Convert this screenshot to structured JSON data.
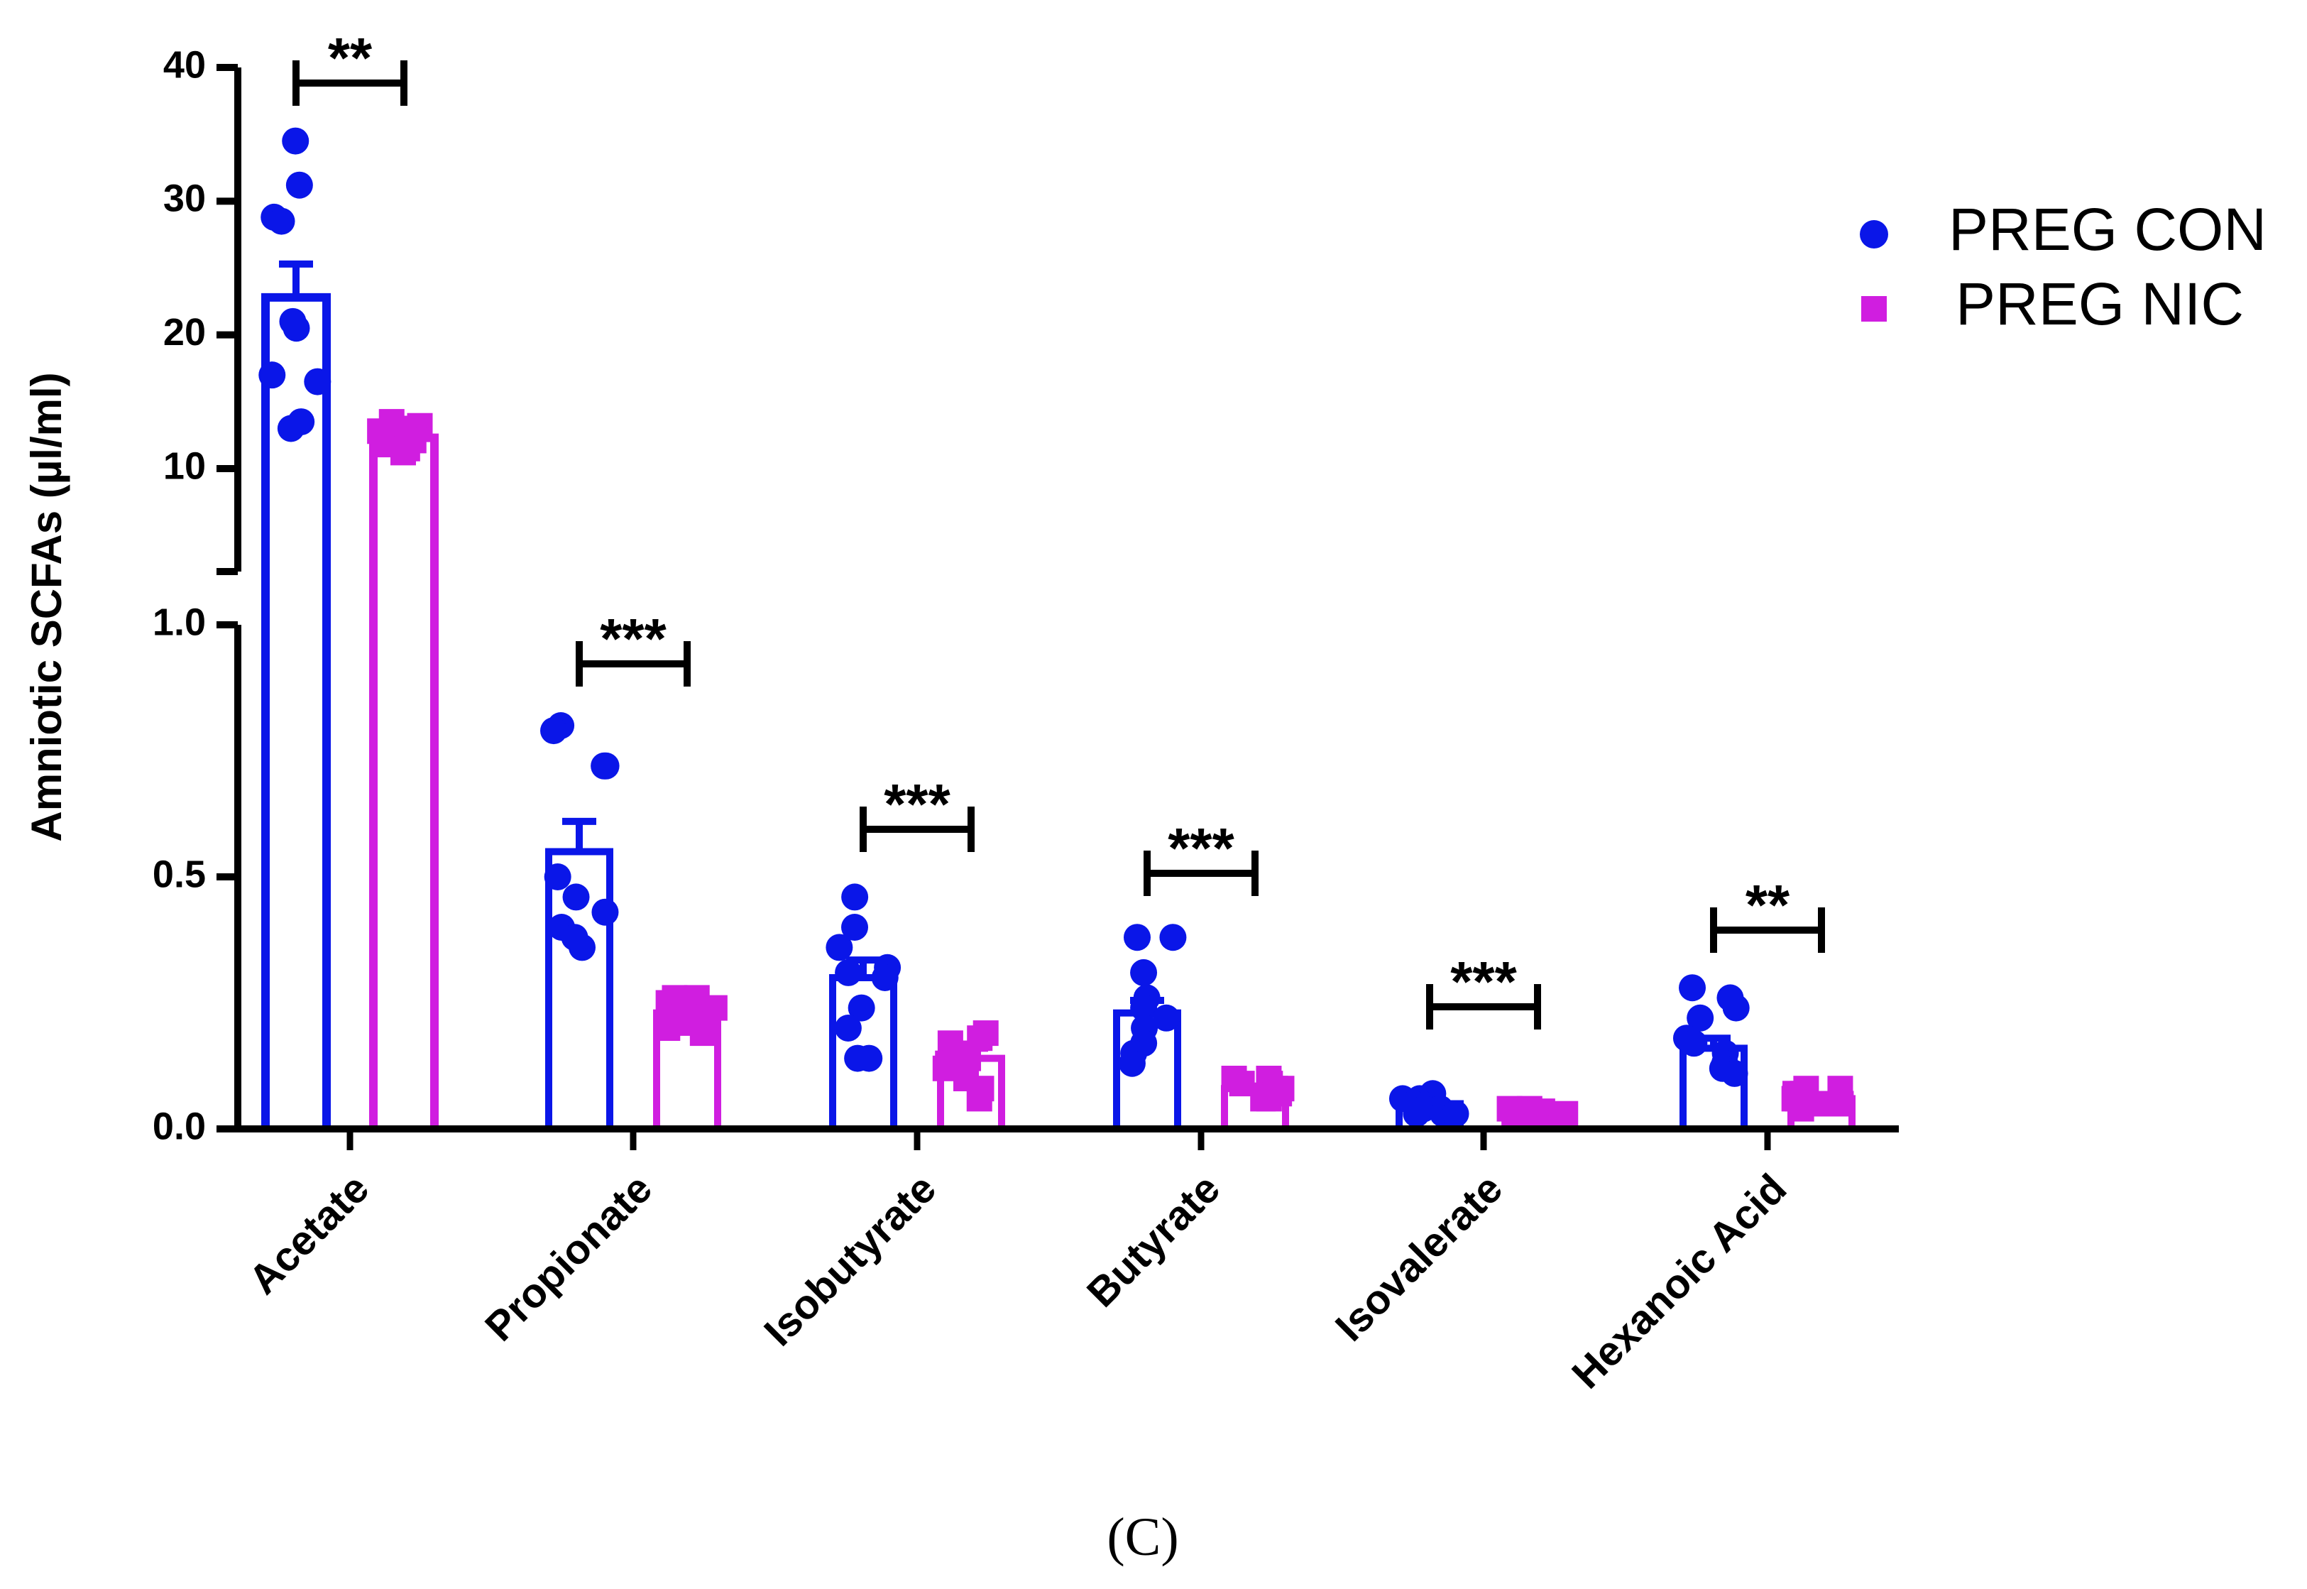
{
  "chart_data": {
    "type": "bar",
    "ylabel": "Amniotic SCFAs (µl/ml)",
    "panel_label": "(C)",
    "categories": [
      "Acetate",
      "Propionate",
      "Isobutyrate",
      "Butyrate",
      "Isovalerate",
      "Hexanoic Acid"
    ],
    "axis_break": {
      "lower_range": [
        0,
        1.0
      ],
      "upper_range": [
        2,
        40
      ],
      "lower_ticks": [
        0.0,
        0.5,
        1.0
      ],
      "lower_tick_labels": [
        "0.0",
        "0.5",
        "1.0"
      ],
      "upper_ticks": [
        10,
        20,
        30,
        40
      ],
      "upper_tick_labels": [
        "10",
        "20",
        "30",
        "40"
      ]
    },
    "colors": {
      "PREG CON": "#0a16e8",
      "PREG NIC": "#d01ee0"
    },
    "legend": [
      {
        "name": "PREG CON",
        "marker": "circle"
      },
      {
        "name": "PREG NIC",
        "marker": "square"
      }
    ],
    "series": [
      {
        "name": "PREG CON",
        "values": [
          22.8,
          0.55,
          0.3,
          0.23,
          0.05,
          0.16
        ],
        "sem": [
          2.5,
          0.06,
          0.035,
          0.025,
          0.005,
          0.02
        ],
        "points": [
          [
            34.5,
            31.2,
            28.8,
            28.5,
            21.0,
            20.5,
            17.0,
            16.5,
            13.5,
            13.0
          ],
          [
            0.8,
            0.79,
            0.72,
            0.72,
            0.5,
            0.46,
            0.43,
            0.4,
            0.38,
            0.36
          ],
          [
            0.46,
            0.4,
            0.36,
            0.32,
            0.31,
            0.3,
            0.24,
            0.2,
            0.14,
            0.14
          ],
          [
            0.38,
            0.38,
            0.31,
            0.26,
            0.24,
            0.22,
            0.2,
            0.17,
            0.15,
            0.13
          ],
          [
            0.07,
            0.06,
            0.06,
            0.05,
            0.05,
            0.04,
            0.04,
            0.03,
            0.03,
            0.03
          ],
          [
            0.28,
            0.26,
            0.24,
            0.22,
            0.18,
            0.17,
            0.15,
            0.13,
            0.12,
            0.11
          ]
        ]
      },
      {
        "name": "PREG NIC",
        "values": [
          12.3,
          0.23,
          0.14,
          0.08,
          0.03,
          0.06
        ],
        "sem": [
          0.4,
          0.01,
          0.02,
          0.005,
          0.003,
          0.006
        ],
        "points": [
          [
            13.5,
            13.2,
            13.0,
            12.8,
            12.5,
            12.3,
            12.1,
            11.8,
            11.5,
            11.2
          ],
          [
            0.26,
            0.26,
            0.25,
            0.24,
            0.23,
            0.22,
            0.22,
            0.21,
            0.2,
            0.19
          ],
          [
            0.19,
            0.18,
            0.17,
            0.15,
            0.14,
            0.13,
            0.12,
            0.1,
            0.08,
            0.06
          ],
          [
            0.1,
            0.1,
            0.09,
            0.09,
            0.08,
            0.08,
            0.07,
            0.07,
            0.06,
            0.06
          ],
          [
            0.04,
            0.04,
            0.035,
            0.03,
            0.03,
            0.03,
            0.025,
            0.025,
            0.02,
            0.02
          ],
          [
            0.08,
            0.08,
            0.07,
            0.07,
            0.06,
            0.06,
            0.05,
            0.05,
            0.05,
            0.04
          ]
        ]
      }
    ],
    "significance": [
      {
        "category": "Acetate",
        "label": "**"
      },
      {
        "category": "Propionate",
        "label": "***"
      },
      {
        "category": "Isobutyrate",
        "label": "***"
      },
      {
        "category": "Butyrate",
        "label": "***"
      },
      {
        "category": "Isovalerate",
        "label": "***"
      },
      {
        "category": "Hexanoic Acid",
        "label": "**"
      }
    ]
  }
}
